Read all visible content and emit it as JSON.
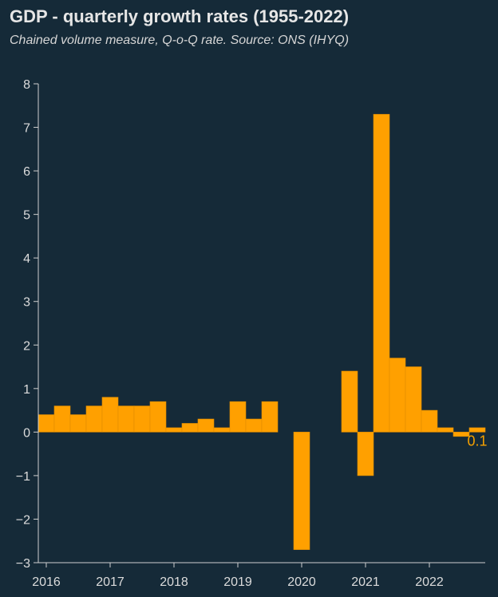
{
  "header": {
    "title": "GDP - quarterly growth rates (1955-2022)",
    "subtitle": "Chained volume measure, Q-o-Q rate. Source: ONS (IHYQ)"
  },
  "chart_data": {
    "type": "bar",
    "title": "GDP - quarterly growth rates (1955-2022)",
    "subtitle": "Chained volume measure, Q-o-Q rate. Source: ONS (IHYQ)",
    "xlabel": "",
    "ylabel": "",
    "ylim": [
      -3,
      8
    ],
    "yticks": [
      -3,
      -2,
      -1,
      0,
      1,
      2,
      3,
      4,
      5,
      6,
      7,
      8
    ],
    "ytick_labels": [
      "−3",
      "−2",
      "−1",
      "0",
      "1",
      "2",
      "3",
      "4",
      "5",
      "6",
      "7",
      "8"
    ],
    "xticks": [
      "2016",
      "2017",
      "2018",
      "2019",
      "2020",
      "2021",
      "2022"
    ],
    "bar_color": "#ffa000",
    "categories": [
      "2016 Q1",
      "2016 Q2",
      "2016 Q3",
      "2016 Q4",
      "2017 Q1",
      "2017 Q2",
      "2017 Q3",
      "2017 Q4",
      "2018 Q1",
      "2018 Q2",
      "2018 Q3",
      "2018 Q4",
      "2019 Q1",
      "2019 Q2",
      "2019 Q3",
      "2019 Q4",
      "2020 Q1",
      "2020 Q2",
      "2020 Q3",
      "2020 Q4",
      "2021 Q1",
      "2021 Q2",
      "2021 Q3",
      "2021 Q4",
      "2022 Q1",
      "2022 Q2",
      "2022 Q3",
      "2022 Q4"
    ],
    "values": [
      0.4,
      0.6,
      0.4,
      0.6,
      0.8,
      0.6,
      0.6,
      0.7,
      0.1,
      0.2,
      0.3,
      0.1,
      0.7,
      0.3,
      0.7,
      null,
      -2.7,
      null,
      null,
      1.4,
      -1.0,
      7.3,
      1.7,
      1.5,
      0.5,
      0.1,
      -0.1,
      0.1
    ],
    "annotations": [
      {
        "category": "2022 Q4",
        "text": "0.1"
      }
    ]
  }
}
